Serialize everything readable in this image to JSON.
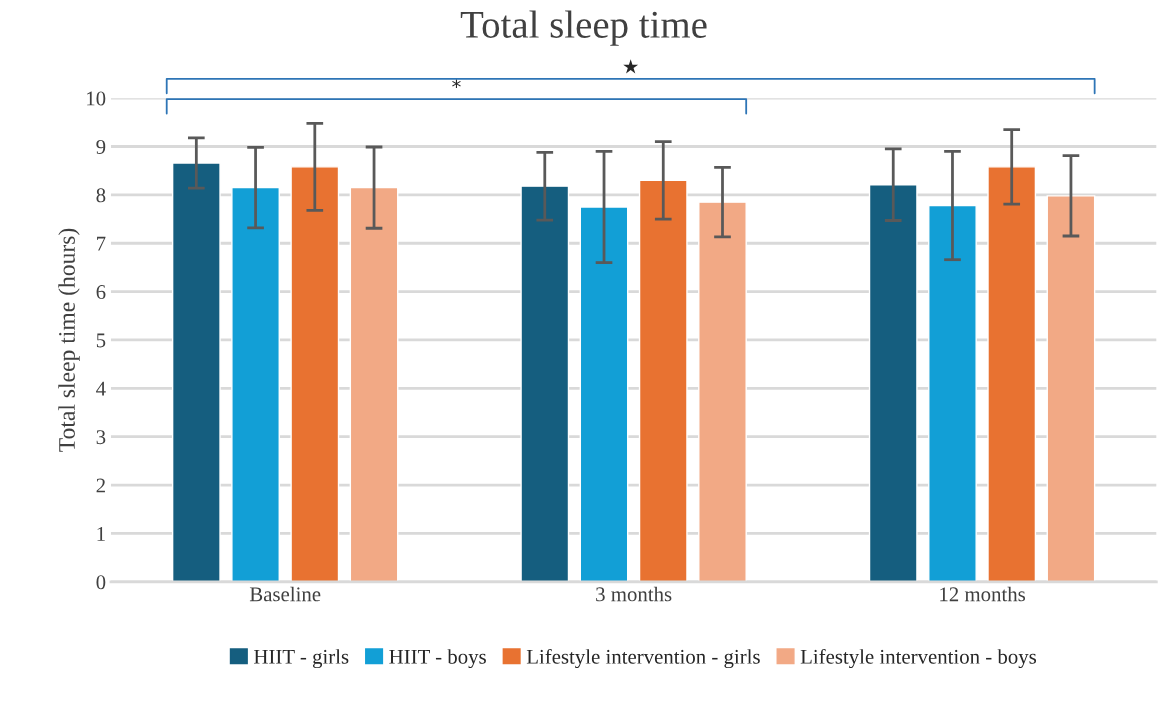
{
  "chart_data": {
    "type": "bar",
    "title": "Total sleep time",
    "ylabel": "Total sleep time (hours)",
    "categories": [
      "Baseline",
      "3 months",
      "12 months"
    ],
    "series": [
      {
        "name": "HIIT - girls",
        "color": "#155e7f",
        "values": [
          8.66,
          8.18,
          8.21
        ],
        "errors": [
          0.52,
          0.7,
          0.74
        ]
      },
      {
        "name": "HIIT - boys",
        "color": "#129fd6",
        "values": [
          8.15,
          7.75,
          7.78
        ],
        "errors": [
          0.83,
          1.15,
          1.12
        ]
      },
      {
        "name": "Lifestyle intervention - girls",
        "color": "#e87231",
        "values": [
          8.58,
          8.3,
          8.58
        ],
        "errors": [
          0.9,
          0.8,
          0.77
        ]
      },
      {
        "name": "Lifestyle intervention - boys",
        "color": "#f2a985",
        "values": [
          8.15,
          7.85,
          7.98
        ],
        "errors": [
          0.84,
          0.72,
          0.83
        ]
      }
    ],
    "ylim": [
      0,
      10
    ],
    "yticks": [
      0,
      1,
      2,
      3,
      4,
      5,
      6,
      7,
      8,
      9,
      10
    ],
    "grid": "y",
    "legend": "bottom",
    "annotations": [
      "★",
      "*"
    ]
  }
}
